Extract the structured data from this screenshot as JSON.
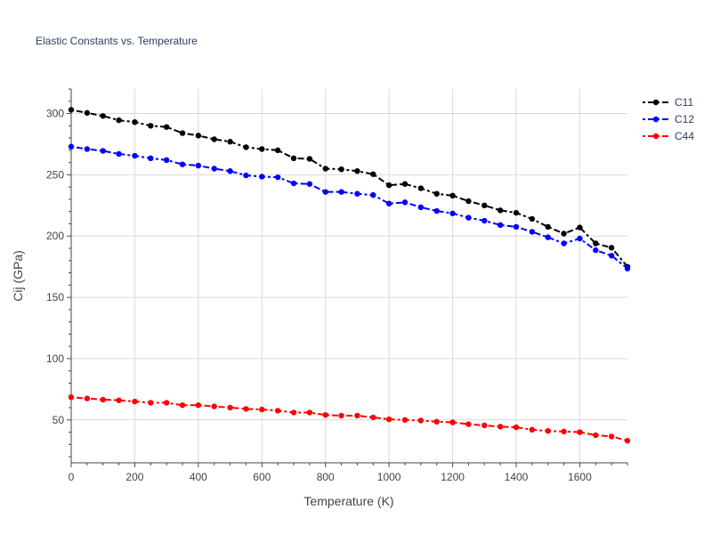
{
  "chart_data": {
    "type": "line",
    "title": "Elastic Constants vs. Temperature",
    "xlabel": "Temperature (K)",
    "ylabel": "Cij (GPa)",
    "xlim": [
      0,
      1750
    ],
    "ylim": [
      15,
      320
    ],
    "x_ticks": [
      0,
      200,
      400,
      600,
      800,
      1000,
      1200,
      1400,
      1600
    ],
    "y_ticks": [
      50,
      100,
      150,
      200,
      250,
      300
    ],
    "grid": true,
    "legend_position": "top-right",
    "x": [
      0,
      50,
      100,
      150,
      200,
      250,
      300,
      350,
      400,
      450,
      500,
      550,
      600,
      650,
      700,
      750,
      800,
      850,
      900,
      950,
      1000,
      1050,
      1100,
      1150,
      1200,
      1250,
      1300,
      1350,
      1400,
      1450,
      1500,
      1550,
      1600,
      1650,
      1700,
      1750
    ],
    "series": [
      {
        "name": "C11",
        "color": "#000000",
        "values": [
          303,
          300.5,
          298,
          294.5,
          293,
          290,
          289,
          284,
          282,
          279,
          277,
          272.5,
          271,
          270,
          263.5,
          263,
          255,
          254.5,
          253,
          250.5,
          241.5,
          242.5,
          239,
          234.5,
          233,
          228.5,
          225,
          221,
          219,
          214,
          207.5,
          202,
          207,
          194,
          190.5,
          175
        ]
      },
      {
        "name": "C12",
        "color": "#0000ff",
        "values": [
          273,
          271,
          269.5,
          267,
          265.5,
          263.5,
          262,
          258.5,
          257.5,
          255,
          253,
          249.5,
          248.5,
          248,
          243,
          242.5,
          236,
          236,
          234.5,
          233.5,
          226.5,
          227.5,
          223.5,
          220.5,
          218.5,
          215,
          212.5,
          209,
          207.5,
          203.5,
          199,
          194,
          198,
          188.5,
          184,
          173.5
        ]
      },
      {
        "name": "C44",
        "color": "#ff0000",
        "values": [
          68.5,
          67.5,
          66.5,
          66,
          65,
          64,
          64,
          62,
          62,
          61,
          60,
          59,
          58.5,
          57.5,
          56,
          56,
          54,
          53.5,
          53.5,
          52,
          50.5,
          50,
          49.5,
          48.5,
          48,
          46.5,
          45.5,
          44.5,
          44,
          42,
          41,
          40.5,
          40,
          37.5,
          36.5,
          33
        ]
      }
    ]
  }
}
